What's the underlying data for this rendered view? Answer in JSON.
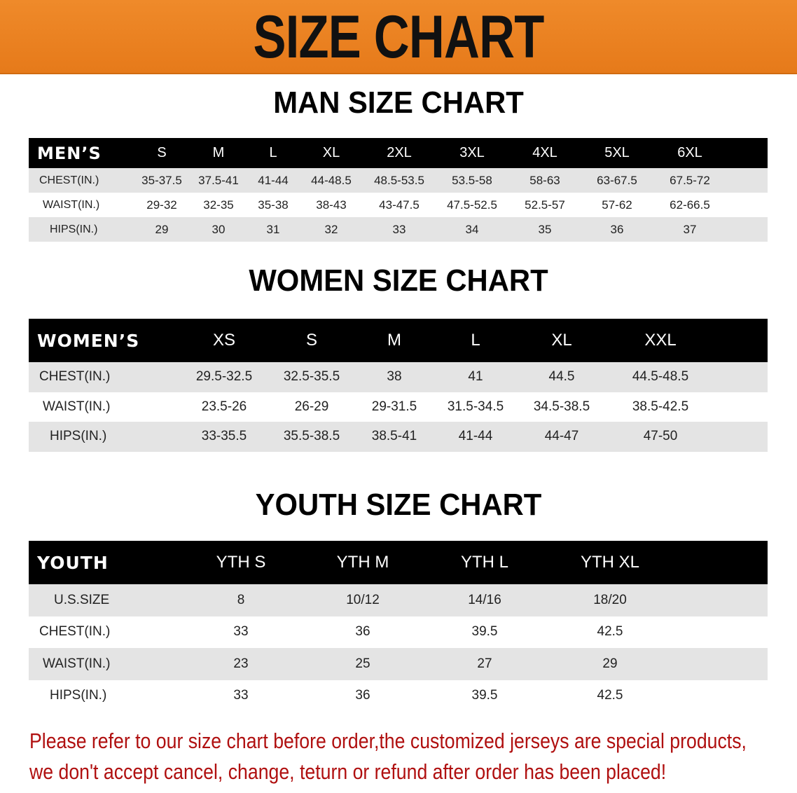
{
  "banner": {
    "title": "SIZE CHART",
    "color": "#e67a1a"
  },
  "men": {
    "title": "MAN SIZE CHART",
    "header_label": "MEN’S",
    "sizes": [
      "S",
      "M",
      "L",
      "XL",
      "2XL",
      "3XL",
      "4XL",
      "5XL",
      "6XL"
    ],
    "rows": [
      {
        "label": "CHEST(IN.)",
        "values": [
          "35-37.5",
          "37.5-41",
          "41-44",
          "44-48.5",
          "48.5-53.5",
          "53.5-58",
          "58-63",
          "63-67.5",
          "67.5-72"
        ]
      },
      {
        "label": "WAIST(IN.)",
        "values": [
          "29-32",
          "32-35",
          "35-38",
          "38-43",
          "43-47.5",
          "47.5-52.5",
          "52.5-57",
          "57-62",
          "62-66.5"
        ]
      },
      {
        "label": "HIPS(IN.)",
        "values": [
          "29",
          "30",
          "31",
          "32",
          "33",
          "34",
          "35",
          "36",
          "37"
        ]
      }
    ]
  },
  "women": {
    "title": "WOMEN SIZE CHART",
    "header_label": "WOMEN’S",
    "sizes": [
      "XS",
      "S",
      "M",
      "L",
      "XL",
      "XXL"
    ],
    "rows": [
      {
        "label": "CHEST(IN.)",
        "values": [
          "29.5-32.5",
          "32.5-35.5",
          "38",
          "41",
          "44.5",
          "44.5-48.5"
        ]
      },
      {
        "label": "WAIST(IN.)",
        "values": [
          "23.5-26",
          "26-29",
          "29-31.5",
          "31.5-34.5",
          "34.5-38.5",
          "38.5-42.5"
        ]
      },
      {
        "label": "HIPS(IN.)",
        "values": [
          "33-35.5",
          "35.5-38.5",
          "38.5-41",
          "41-44",
          "44-47",
          "47-50"
        ]
      }
    ]
  },
  "youth": {
    "title": "YOUTH SIZE CHART",
    "header_label": "YOUTH",
    "sizes": [
      "YTH S",
      "YTH M",
      "YTH L",
      "YTH XL"
    ],
    "rows": [
      {
        "label": "U.S.SIZE",
        "values": [
          "8",
          "10/12",
          "14/16",
          "18/20"
        ]
      },
      {
        "label": "CHEST(IN.)",
        "values": [
          "33",
          "36",
          "39.5",
          "42.5"
        ]
      },
      {
        "label": "WAIST(IN.)",
        "values": [
          "23",
          "25",
          "27",
          "29"
        ]
      },
      {
        "label": "HIPS(IN.)",
        "values": [
          "33",
          "36",
          "39.5",
          "42.5"
        ]
      }
    ]
  },
  "notice": {
    "line1": "Please refer to our size chart before order,the customized jerseys are special products,",
    "line2": "we don't accept cancel, change, teturn or refund after order has been placed!",
    "color": "#b01010"
  }
}
